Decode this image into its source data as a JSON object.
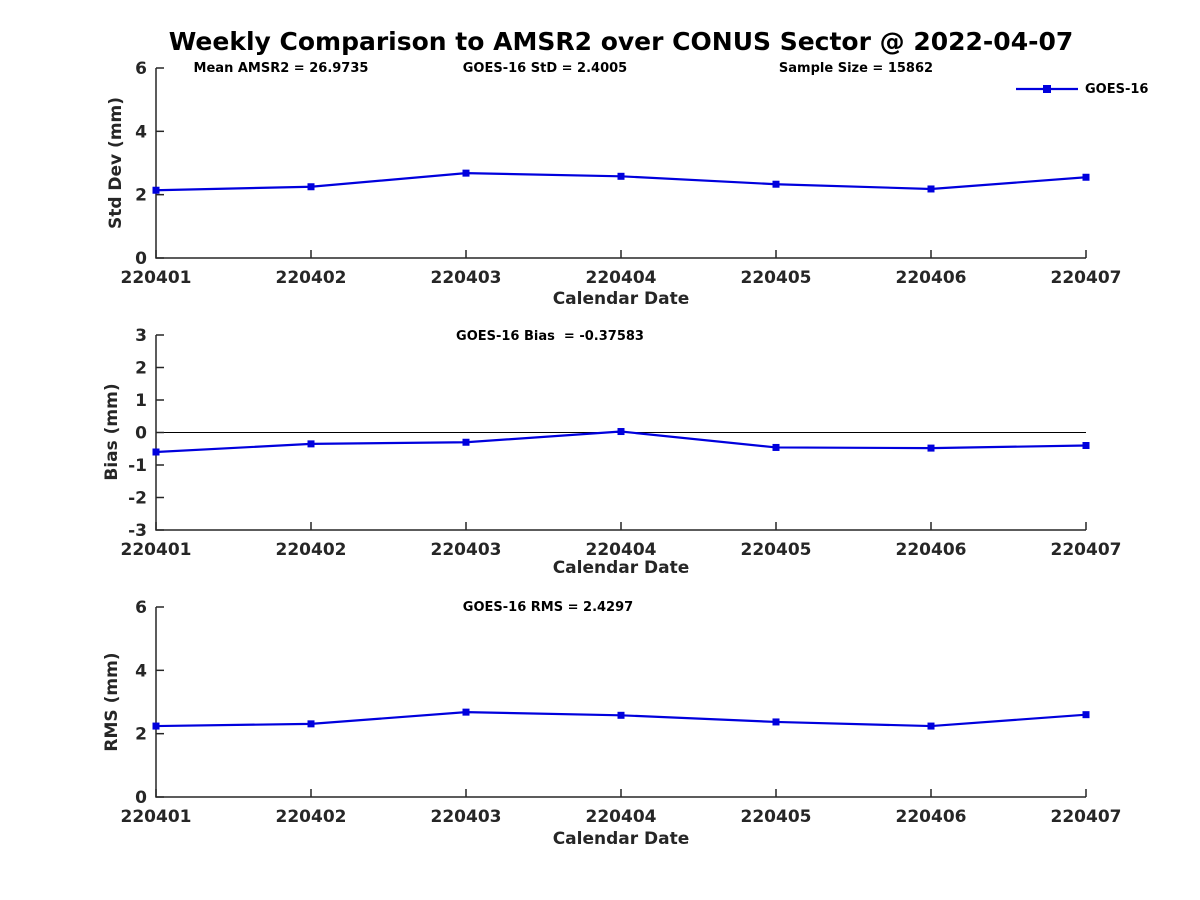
{
  "title": "Weekly Comparison to AMSR2 over CONUS Sector @ 2022-04-07",
  "legend": {
    "label": "GOES-16"
  },
  "colors": {
    "line": "#0000dd",
    "axis": "#262626",
    "zero_line": "#000000"
  },
  "chart_data": [
    {
      "type": "line",
      "name": "std-dev",
      "ylabel": "Std Dev (mm)",
      "xlabel": "Calendar Date",
      "annotations": [
        "Mean AMSR2 = 26.9735",
        "GOES-16 StD = 2.4005",
        "Sample Size = 15862"
      ],
      "legend_entries": [
        "GOES-16"
      ],
      "legend_position": "top-right",
      "grid": false,
      "categories": [
        "220401",
        "220402",
        "220403",
        "220404",
        "220405",
        "220406",
        "220407"
      ],
      "yticks": [
        0,
        2,
        4,
        6
      ],
      "ylim": [
        0,
        6
      ],
      "series": [
        {
          "name": "GOES-16",
          "values": [
            2.14,
            2.25,
            2.68,
            2.58,
            2.33,
            2.18,
            2.55
          ]
        }
      ]
    },
    {
      "type": "line",
      "name": "bias",
      "ylabel": "Bias (mm)",
      "xlabel": "Calendar Date",
      "annotations": [
        "GOES-16 Bias  = -0.37583"
      ],
      "grid": false,
      "zero_line": true,
      "categories": [
        "220401",
        "220402",
        "220403",
        "220404",
        "220405",
        "220406",
        "220407"
      ],
      "yticks": [
        -3,
        -2,
        -1,
        0,
        1,
        2,
        3
      ],
      "ylim": [
        -3,
        3
      ],
      "series": [
        {
          "name": "GOES-16",
          "values": [
            -0.6,
            -0.35,
            -0.3,
            0.03,
            -0.46,
            -0.48,
            -0.4
          ]
        }
      ]
    },
    {
      "type": "line",
      "name": "rms",
      "ylabel": "RMS (mm)",
      "xlabel": "Calendar Date",
      "annotations": [
        "GOES-16 RMS = 2.4297"
      ],
      "grid": false,
      "categories": [
        "220401",
        "220402",
        "220403",
        "220404",
        "220405",
        "220406",
        "220407"
      ],
      "yticks": [
        0,
        2,
        4,
        6
      ],
      "ylim": [
        0,
        6
      ],
      "series": [
        {
          "name": "GOES-16",
          "values": [
            2.24,
            2.31,
            2.68,
            2.58,
            2.37,
            2.24,
            2.6
          ]
        }
      ]
    }
  ]
}
